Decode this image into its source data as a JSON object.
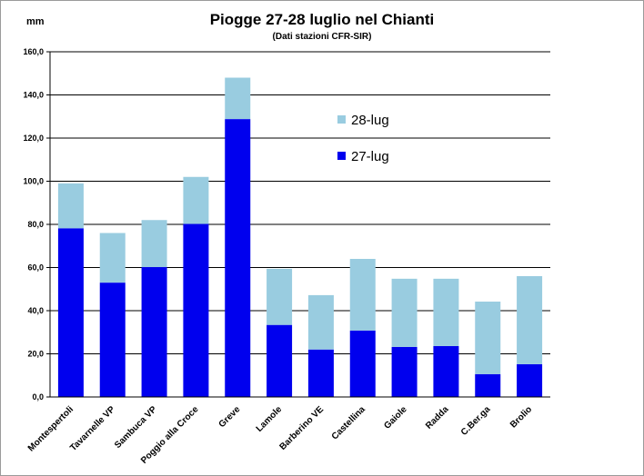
{
  "chart_data": {
    "type": "bar",
    "stacked": true,
    "title": "Piogge 27-28 luglio nel Chianti",
    "subtitle": "(Dati stazioni CFR-SIR)",
    "ylabel": "mm",
    "xlabel": "",
    "ylim": [
      0,
      160
    ],
    "yticks": [
      "0,0",
      "20,0",
      "40,0",
      "60,0",
      "80,0",
      "100,0",
      "120,0",
      "140,0",
      "160,0"
    ],
    "grid": true,
    "legend_position": "top-right",
    "categories": [
      "Montespertoli",
      "Tavarnelle VP",
      "Sambuca  VP",
      "Poggio alla Croce",
      "Greve",
      "Lamole",
      "Barberino VE",
      "Castellina",
      "Gaiole",
      "Radda",
      "C.Ber.ga",
      "Brolio"
    ],
    "series": [
      {
        "name": "27-lug",
        "color": "#0000ee",
        "values": [
          78.2,
          53.0,
          60.2,
          80.2,
          128.8,
          33.4,
          22.0,
          30.8,
          23.2,
          23.6,
          10.6,
          15.2
        ]
      },
      {
        "name": "28-lug",
        "color": "#99cce0",
        "values": [
          20.8,
          23.0,
          21.8,
          21.8,
          19.2,
          26.0,
          25.2,
          33.2,
          31.6,
          31.2,
          33.6,
          40.8
        ]
      }
    ]
  }
}
